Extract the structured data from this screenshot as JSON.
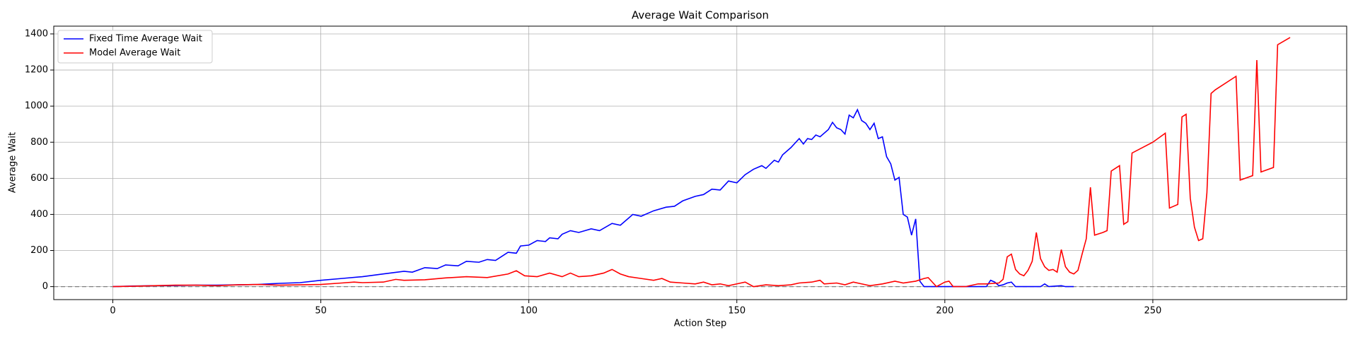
{
  "chart_data": {
    "type": "line",
    "title": "Average Wait Comparison",
    "x_label": "Action Step",
    "y_label": "Average Wait",
    "xlim": [
      -14.2,
      296.6
    ],
    "ylim": [
      -72,
      1443
    ],
    "xticks": [
      0,
      50,
      100,
      150,
      200,
      250
    ],
    "yticks": [
      0,
      200,
      400,
      600,
      800,
      1000,
      1200,
      1400
    ],
    "grid": true,
    "legend": "upper left",
    "reference_line": {
      "y": 0,
      "color": "#808080",
      "style": "dashed"
    },
    "series": [
      {
        "name": "Fixed Time Average Wait",
        "color": "#0000ff",
        "x": [
          0,
          5,
          10,
          15,
          20,
          25,
          30,
          35,
          40,
          45,
          50,
          55,
          60,
          65,
          70,
          72,
          75,
          78,
          80,
          83,
          85,
          88,
          90,
          92,
          95,
          97,
          98,
          100,
          102,
          104,
          105,
          107,
          108,
          110,
          112,
          115,
          117,
          120,
          122,
          125,
          127,
          130,
          133,
          135,
          137,
          140,
          142,
          144,
          146,
          148,
          150,
          152,
          154,
          156,
          157,
          159,
          160,
          161,
          163,
          165,
          166,
          167,
          168,
          169,
          170,
          172,
          173,
          174,
          175,
          176,
          177,
          178,
          179,
          180,
          181,
          182,
          183,
          184,
          185,
          186,
          187,
          188,
          189,
          190,
          191,
          192,
          193,
          194,
          195,
          200,
          205,
          210,
          211,
          212,
          213,
          214,
          215,
          216,
          217,
          220,
          223,
          224,
          225,
          228,
          229,
          231
        ],
        "values": [
          0,
          3,
          5,
          6,
          8,
          8,
          10,
          12,
          18,
          22,
          35,
          45,
          55,
          70,
          85,
          80,
          105,
          100,
          120,
          115,
          140,
          135,
          150,
          145,
          190,
          185,
          225,
          230,
          255,
          250,
          270,
          265,
          290,
          310,
          300,
          320,
          310,
          350,
          340,
          400,
          390,
          420,
          440,
          445,
          475,
          500,
          510,
          540,
          535,
          585,
          575,
          620,
          650,
          670,
          655,
          700,
          690,
          730,
          770,
          820,
          790,
          820,
          815,
          840,
          830,
          870,
          910,
          880,
          870,
          845,
          950,
          935,
          980,
          920,
          905,
          870,
          905,
          820,
          830,
          720,
          680,
          590,
          605,
          400,
          385,
          285,
          375,
          30,
          0,
          0,
          0,
          0,
          35,
          25,
          5,
          10,
          20,
          25,
          0,
          0,
          0,
          15,
          0,
          5,
          0,
          0
        ]
      },
      {
        "name": "Model Average Wait",
        "color": "#ff0000",
        "x": [
          0,
          5,
          10,
          15,
          20,
          25,
          30,
          35,
          40,
          45,
          50,
          55,
          58,
          60,
          65,
          68,
          70,
          75,
          80,
          85,
          90,
          95,
          97,
          99,
          102,
          105,
          108,
          110,
          112,
          115,
          118,
          120,
          122,
          124,
          127,
          130,
          132,
          134,
          137,
          140,
          142,
          144,
          146,
          148,
          150,
          152,
          154,
          157,
          160,
          163,
          165,
          168,
          170,
          171,
          174,
          176,
          178,
          180,
          182,
          185,
          188,
          190,
          193,
          195,
          196,
          198,
          200,
          201,
          202,
          205,
          208,
          210,
          213,
          214,
          215,
          216,
          217,
          218,
          219,
          220,
          221,
          222,
          223,
          224,
          225,
          226,
          227,
          228,
          229,
          230,
          231,
          232,
          233,
          234,
          235,
          236,
          238,
          239,
          240,
          242,
          243,
          244,
          245,
          250,
          253,
          254,
          256,
          257,
          258,
          259,
          260,
          261,
          262,
          263,
          264,
          265,
          270,
          271,
          274,
          275,
          276,
          279,
          280,
          283
        ],
        "values": [
          0,
          2,
          5,
          8,
          8,
          5,
          10,
          12,
          8,
          10,
          12,
          20,
          25,
          22,
          25,
          40,
          35,
          38,
          48,
          55,
          50,
          70,
          88,
          60,
          55,
          75,
          55,
          75,
          55,
          60,
          75,
          95,
          70,
          55,
          45,
          35,
          45,
          25,
          20,
          15,
          25,
          10,
          15,
          5,
          15,
          25,
          0,
          10,
          5,
          10,
          20,
          25,
          35,
          15,
          20,
          10,
          25,
          15,
          5,
          15,
          30,
          20,
          30,
          45,
          50,
          0,
          25,
          30,
          0,
          0,
          15,
          15,
          20,
          40,
          165,
          180,
          95,
          70,
          60,
          90,
          140,
          300,
          155,
          110,
          90,
          95,
          80,
          205,
          110,
          80,
          70,
          90,
          180,
          265,
          550,
          285,
          300,
          310,
          640,
          670,
          345,
          360,
          740,
          800,
          850,
          435,
          455,
          940,
          955,
          490,
          330,
          255,
          265,
          520,
          1070,
          1090,
          1165,
          590,
          615,
          1255,
          635,
          660,
          1340,
          1380
        ]
      }
    ]
  }
}
